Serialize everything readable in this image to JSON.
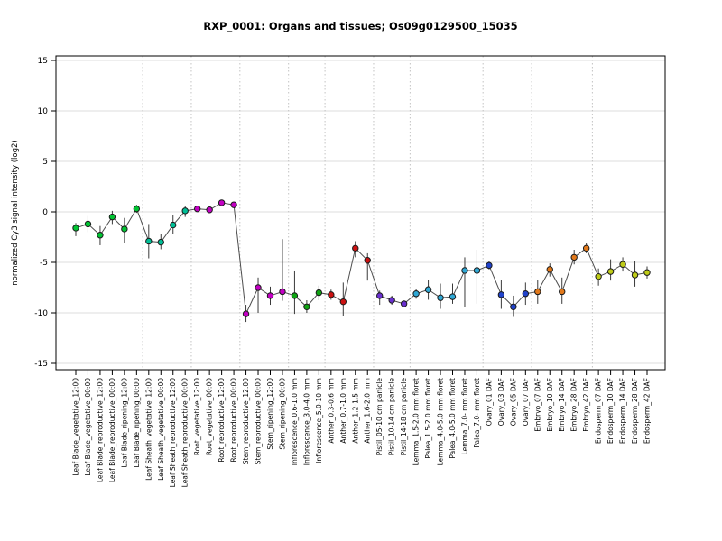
{
  "chart_data": {
    "type": "scatter",
    "title": "RXP_0001: Organs and tissues; Os09g0129500_15035",
    "ylabel": "normalized Cy3 signal intensity (log2)",
    "ylim": [
      -15.5,
      15.5
    ],
    "yticks": [
      15,
      10,
      5,
      0,
      -5,
      -10,
      -15
    ],
    "grid": "horizontal gridlines at ticks; dotted vertical separators between organ groups",
    "legend": "none",
    "groups": [
      {
        "name": "Leaf Blade",
        "color": "#00C432"
      },
      {
        "name": "Leaf Sheath",
        "color": "#00BE96"
      },
      {
        "name": "Root",
        "color": "#C400C4"
      },
      {
        "name": "Stem",
        "color": "#C400C4"
      },
      {
        "name": "Inflorescence",
        "color": "#0EA412"
      },
      {
        "name": "Anther",
        "color": "#CC1111"
      },
      {
        "name": "Pistil",
        "color": "#6A2FD0"
      },
      {
        "name": "Lemma/Palea",
        "color": "#2FA8D5"
      },
      {
        "name": "Ovary",
        "color": "#2143CB"
      },
      {
        "name": "Embryo",
        "color": "#E2791B"
      },
      {
        "name": "Endosperm",
        "color": "#BFCC17"
      }
    ],
    "separators_after": [
      5,
      9,
      13,
      17,
      20,
      24,
      27,
      33,
      37,
      42
    ],
    "points": [
      {
        "label": "Leaf Blade_vegetative_12:00",
        "value": -1.6,
        "lo": -2.4,
        "hi": -1.1,
        "group": "Leaf Blade"
      },
      {
        "label": "Leaf Blade_vegetative_00:00",
        "value": -1.2,
        "lo": -2.0,
        "hi": -0.4,
        "group": "Leaf Blade"
      },
      {
        "label": "Leaf Blade_reproductive_12:00",
        "value": -2.3,
        "lo": -3.3,
        "hi": -1.4,
        "group": "Leaf Blade"
      },
      {
        "label": "Leaf Blade_reproductive_00:00",
        "value": -0.5,
        "lo": -1.2,
        "hi": 0.1,
        "group": "Leaf Blade"
      },
      {
        "label": "Leaf Blade_ripening_12:00",
        "value": -1.7,
        "lo": -3.1,
        "hi": -0.6,
        "group": "Leaf Blade"
      },
      {
        "label": "Leaf Blade_ripening_00:00",
        "value": 0.3,
        "lo": -0.1,
        "hi": 0.7,
        "group": "Leaf Blade"
      },
      {
        "label": "Leaf Sheath_vegetative_12:00",
        "value": -2.9,
        "lo": -4.6,
        "hi": -1.2,
        "group": "Leaf Sheath"
      },
      {
        "label": "Leaf Sheath_vegetative_00:00",
        "value": -3.0,
        "lo": -3.7,
        "hi": -2.2,
        "group": "Leaf Sheath"
      },
      {
        "label": "Leaf Sheath_reproductive_12:00",
        "value": -1.3,
        "lo": -2.2,
        "hi": -0.3,
        "group": "Leaf Sheath"
      },
      {
        "label": "Leaf Sheath_reproductive_00:00",
        "value": 0.1,
        "lo": -0.5,
        "hi": 0.6,
        "group": "Leaf Sheath"
      },
      {
        "label": "Root_vegetative_12:00",
        "value": 0.3,
        "lo": 0.0,
        "hi": 0.6,
        "group": "Root"
      },
      {
        "label": "Root_vegetative_00:00",
        "value": 0.2,
        "lo": -0.1,
        "hi": 0.5,
        "group": "Root"
      },
      {
        "label": "Root_reproductive_12:00",
        "value": 0.9,
        "lo": 0.65,
        "hi": 1.15,
        "group": "Root"
      },
      {
        "label": "Root_reproductive_00:00",
        "value": 0.7,
        "lo": 0.45,
        "hi": 0.95,
        "group": "Root"
      },
      {
        "label": "Stem_reproductive_12:00",
        "value": -10.1,
        "lo": -10.9,
        "hi": -9.2,
        "group": "Stem"
      },
      {
        "label": "Stem_reproductive_00:00",
        "value": -7.5,
        "lo": -10.0,
        "hi": -6.5,
        "group": "Stem"
      },
      {
        "label": "Stem_ripening_12:00",
        "value": -8.3,
        "lo": -9.2,
        "hi": -7.4,
        "group": "Stem"
      },
      {
        "label": "Stem_ripening_00:00",
        "value": -7.9,
        "lo": -8.8,
        "hi": -2.7,
        "group": "Stem"
      },
      {
        "label": "Inflorescence_0.6-1.0 mm",
        "value": -8.3,
        "lo": -10.1,
        "hi": -5.8,
        "group": "Inflorescence"
      },
      {
        "label": "Inflorescence_3.0-4.0 mm",
        "value": -9.4,
        "lo": -10.0,
        "hi": -8.75,
        "group": "Inflorescence"
      },
      {
        "label": "Inflorescence_5.0-10 mm",
        "value": -8.0,
        "lo": -8.75,
        "hi": -7.3,
        "group": "Inflorescence"
      },
      {
        "label": "Anther_0.3-0.6 mm",
        "value": -8.2,
        "lo": -8.7,
        "hi": -7.7,
        "group": "Anther"
      },
      {
        "label": "Anther_0.7-1.0 mm",
        "value": -8.9,
        "lo": -10.3,
        "hi": -7.0,
        "group": "Anther"
      },
      {
        "label": "Anther_1.2-1.5 mm",
        "value": -3.6,
        "lo": -4.5,
        "hi": -2.9,
        "group": "Anther"
      },
      {
        "label": "Anther_1.6-2.0 mm",
        "value": -4.8,
        "lo": -6.8,
        "hi": -4.1,
        "group": "Anther"
      },
      {
        "label": "Pistil_05-10 cm panicle",
        "value": -8.3,
        "lo": -9.2,
        "hi": -7.8,
        "group": "Pistil"
      },
      {
        "label": "Pistil_10-14 cm panicle",
        "value": -8.75,
        "lo": -9.2,
        "hi": -8.3,
        "group": "Pistil"
      },
      {
        "label": "Pistil_14-18 cm panicle",
        "value": -9.1,
        "lo": -9.4,
        "hi": -8.8,
        "group": "Pistil"
      },
      {
        "label": "Lemma_1.5-2.0 mm floret",
        "value": -8.1,
        "lo": -8.6,
        "hi": -7.6,
        "group": "Lemma/Palea"
      },
      {
        "label": "Palea_1.5-2.0 mm floret",
        "value": -7.7,
        "lo": -8.7,
        "hi": -6.7,
        "group": "Lemma/Palea"
      },
      {
        "label": "Lemma_4.0-5.0 mm floret",
        "value": -8.5,
        "lo": -9.6,
        "hi": -7.1,
        "group": "Lemma/Palea"
      },
      {
        "label": "Palea_4.0-5.0 mm floret",
        "value": -8.4,
        "lo": -9.1,
        "hi": -7.1,
        "group": "Lemma/Palea"
      },
      {
        "label": "Lemma_7.0- mm floret",
        "value": -5.8,
        "lo": -9.4,
        "hi": -4.5,
        "group": "Lemma/Palea"
      },
      {
        "label": "Palea_7.0- mm floret",
        "value": -5.8,
        "lo": -9.1,
        "hi": -3.75,
        "group": "Lemma/Palea"
      },
      {
        "label": "Ovary_01 DAF",
        "value": -5.3,
        "lo": -5.7,
        "hi": -4.9,
        "group": "Ovary"
      },
      {
        "label": "Ovary_03 DAF",
        "value": -8.2,
        "lo": -9.6,
        "hi": -6.7,
        "group": "Ovary"
      },
      {
        "label": "Ovary_05 DAF",
        "value": -9.4,
        "lo": -10.4,
        "hi": -8.3,
        "group": "Ovary"
      },
      {
        "label": "Ovary_07 DAF",
        "value": -8.1,
        "lo": -9.2,
        "hi": -7.0,
        "group": "Ovary"
      },
      {
        "label": "Embryo_07 DAF",
        "value": -7.9,
        "lo": -9.1,
        "hi": -6.7,
        "group": "Embryo"
      },
      {
        "label": "Embryo_10 DAF",
        "value": -5.7,
        "lo": -6.4,
        "hi": -5.1,
        "group": "Embryo"
      },
      {
        "label": "Embryo_14 DAF",
        "value": -7.9,
        "lo": -9.1,
        "hi": -6.5,
        "group": "Embryo"
      },
      {
        "label": "Embryo_28 DAF",
        "value": -4.5,
        "lo": -5.2,
        "hi": -3.75,
        "group": "Embryo"
      },
      {
        "label": "Embryo_42 DAF",
        "value": -3.6,
        "lo": -4.1,
        "hi": -3.1,
        "group": "Embryo"
      },
      {
        "label": "Endosperm_07 DAF",
        "value": -6.4,
        "lo": -7.3,
        "hi": -5.6,
        "group": "Endosperm"
      },
      {
        "label": "Endosperm_10 DAF",
        "value": -5.9,
        "lo": -6.8,
        "hi": -4.7,
        "group": "Endosperm"
      },
      {
        "label": "Endosperm_14 DAF",
        "value": -5.2,
        "lo": -5.9,
        "hi": -4.5,
        "group": "Endosperm"
      },
      {
        "label": "Endosperm_28 DAF",
        "value": -6.25,
        "lo": -7.4,
        "hi": -4.9,
        "group": "Endosperm"
      },
      {
        "label": "Endosperm_42 DAF",
        "value": -6.0,
        "lo": -6.6,
        "hi": -5.4,
        "group": "Endosperm"
      }
    ]
  }
}
